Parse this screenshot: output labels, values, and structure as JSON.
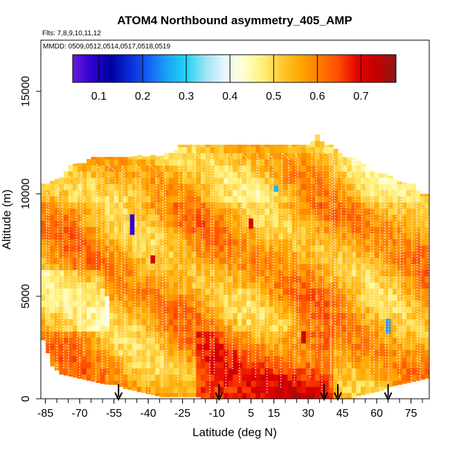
{
  "chart_data": {
    "type": "heatmap",
    "title": "ATOM4 Northbound asymmetry_405_AMP",
    "subtitle_flights": "Flts: 7,8,9,10,11,12",
    "subtitle_dates": "MMDD: 0509,0512,0514,0517,0518,0519",
    "xlabel": "Latitude (deg N)",
    "ylabel": "Altitude (m)",
    "xlim": [
      -87,
      83
    ],
    "ylim": [
      0,
      17500
    ],
    "x_ticks": [
      -85,
      -70,
      -55,
      -40,
      -25,
      -10,
      5,
      15,
      30,
      45,
      60,
      75
    ],
    "y_ticks": [
      0,
      5000,
      10000,
      15000
    ],
    "colorbar": {
      "range": [
        0.04,
        0.78
      ],
      "ticks": [
        0.1,
        0.2,
        0.3,
        0.4,
        0.5,
        0.6,
        0.7
      ],
      "colors": [
        "#6a1bd6",
        "#2b00d0",
        "#0000a0",
        "#0a2ad8",
        "#1660f5",
        "#1aa6f5",
        "#23d3f5",
        "#9ee3f3",
        "#e8f6ff",
        "#ffffd0",
        "#fff07a",
        "#ffc830",
        "#ffa500",
        "#ff7a00",
        "#ff4a00",
        "#e00000",
        "#c40000",
        "#8b1a1a"
      ]
    },
    "max_altitude_profile": {
      "lat": [
        -87,
        -84,
        -81,
        -78,
        -74,
        -71,
        -68,
        -65,
        -62,
        -59,
        -56,
        -53,
        -50,
        -47,
        -44,
        -41,
        -38,
        -35,
        -32,
        -29,
        -26,
        -23,
        -20,
        -17,
        -14,
        -11,
        -8,
        -5,
        -2,
        1,
        4,
        7,
        10,
        13,
        16,
        19,
        22,
        25,
        28,
        31,
        34,
        37,
        40,
        43,
        46,
        49,
        52,
        55,
        58,
        61,
        64,
        67,
        70,
        73,
        76,
        79,
        82
      ],
      "alt": [
        10500,
        10500,
        10700,
        10800,
        11400,
        11500,
        11500,
        11800,
        11800,
        11800,
        11800,
        11800,
        11800,
        11800,
        11900,
        11800,
        11900,
        11800,
        12000,
        12000,
        12400,
        12400,
        12400,
        12400,
        12400,
        12400,
        12400,
        12400,
        12400,
        12400,
        12400,
        12400,
        12400,
        12400,
        12400,
        12400,
        12400,
        12400,
        12400,
        12400,
        12900,
        12400,
        12400,
        12100,
        11800,
        11800,
        11600,
        11400,
        11200,
        11000,
        11000,
        10800,
        10600,
        10500,
        10500,
        10000,
        10000
      ]
    },
    "low_altitude_cutoff": {
      "lat": [
        -87,
        -82,
        -78,
        -74,
        -70,
        -66,
        -62,
        -58,
        -54,
        -50,
        -46,
        -42,
        -38,
        -34,
        -30,
        -26,
        -22,
        -18,
        50,
        54,
        58,
        62,
        66,
        70,
        74,
        78,
        82
      ],
      "alt": [
        3200,
        1600,
        1200,
        1100,
        1000,
        900,
        800,
        700,
        700,
        500,
        400,
        300,
        200,
        100,
        100,
        100,
        100,
        100,
        100,
        200,
        300,
        400,
        600,
        700,
        800,
        900,
        1000
      ]
    },
    "hotspots": [
      {
        "lat": -58,
        "alt_bottom": 3500,
        "alt_top": 5000,
        "value": 0.42
      },
      {
        "lat": -47,
        "alt_bottom": 8000,
        "alt_top": 9000,
        "value": 0.08
      },
      {
        "lat": 16,
        "alt_bottom": 10100,
        "alt_top": 10400,
        "value": 0.27
      },
      {
        "lat": 65,
        "alt_bottom": 3200,
        "alt_top": 3900,
        "value": 0.25
      },
      {
        "lat": 5,
        "alt_bottom": 8300,
        "alt_top": 8800,
        "value": 0.7
      },
      {
        "lat": -38,
        "alt_bottom": 6600,
        "alt_top": 7000,
        "value": 0.7
      },
      {
        "lat": 28,
        "alt_bottom": 2700,
        "alt_top": 3300,
        "value": 0.72
      }
    ],
    "flight_track_lats": [
      -85,
      -80,
      -75,
      -70,
      -63,
      -58,
      -52,
      -46,
      -40,
      -34,
      -27,
      -20,
      -13,
      -6,
      0,
      7,
      12,
      18,
      24,
      31,
      36,
      40,
      44,
      50,
      57,
      61,
      65,
      70,
      75,
      79
    ],
    "marker_lats": [
      -53,
      -9,
      37,
      43,
      65
    ]
  }
}
